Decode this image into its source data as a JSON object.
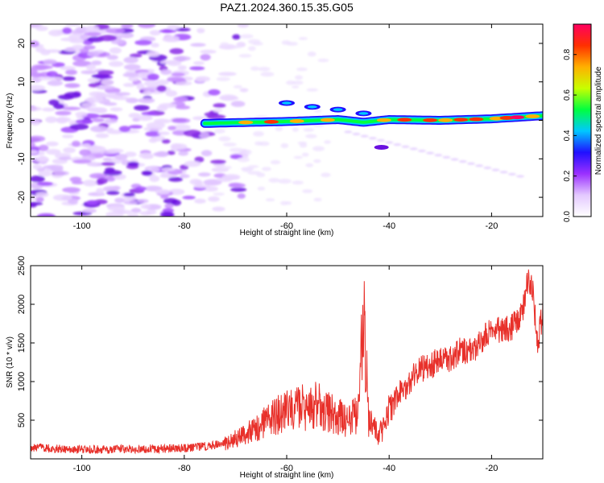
{
  "title": "PAZ1.2024.360.15.35.G05",
  "chart_data": [
    {
      "type": "heatmap",
      "xlabel": "Height of straight line (km)",
      "ylabel": "Frequency (Hz)",
      "xlim": [
        -110,
        -10
      ],
      "ylim": [
        -25,
        25
      ],
      "xticks": [
        -100,
        -80,
        -60,
        -40,
        -20
      ],
      "yticks": [
        -20,
        -10,
        0,
        10,
        20
      ],
      "grid": false,
      "colorbar": {
        "label": "Normalized spectral amplitude",
        "range": [
          0,
          0.95
        ],
        "ticks": [
          "0.0",
          "0.2",
          "0.4",
          "0.6",
          "0.8"
        ],
        "tick_values": [
          0.0,
          0.2,
          0.4,
          0.6,
          0.8
        ],
        "colors": [
          "#ffffff",
          "#e4c9ff",
          "#9b30ff",
          "#2010ff",
          "#00c8ff",
          "#00ff40",
          "#c8ff00",
          "#ffb000",
          "#ff3000",
          "#ff0060"
        ]
      },
      "ridge": {
        "start_height_km": -76,
        "points": [
          [
            -76,
            -0.8
          ],
          [
            -70,
            -0.6
          ],
          [
            -60,
            -0.3
          ],
          [
            -50,
            0.2
          ],
          [
            -45,
            -0.5
          ],
          [
            -40,
            0.2
          ],
          [
            -30,
            0.0
          ],
          [
            -20,
            0.4
          ],
          [
            -10,
            1.2
          ]
        ],
        "secondary": [
          [
            -60,
            4.5
          ],
          [
            -55,
            3.5
          ],
          [
            -50,
            2.8
          ],
          [
            -45,
            1.8
          ]
        ],
        "blip": [
          -41.5,
          -7
        ]
      },
      "noise_region_km": [
        -110,
        -72
      ]
    },
    {
      "type": "line",
      "xlabel": "Height of straight line (km)",
      "ylabel": "SNR (10 * v/v)",
      "xlim": [
        -110,
        -10
      ],
      "ylim": [
        0,
        2500
      ],
      "xticks": [
        -100,
        -80,
        -60,
        -40,
        -20
      ],
      "yticks": [
        500,
        1000,
        1500,
        2000,
        2500
      ],
      "grid": false,
      "series": [
        {
          "color": "#e8302a",
          "x": [
            -110,
            -105,
            -100,
            -95,
            -90,
            -85,
            -80,
            -75,
            -72,
            -70,
            -68,
            -66,
            -64,
            -62,
            -60,
            -58,
            -56,
            -54,
            -52,
            -50,
            -48,
            -46,
            -45,
            -44,
            -42,
            -40,
            -38,
            -36,
            -34,
            -32,
            -30,
            -28,
            -26,
            -24,
            -22,
            -20,
            -18,
            -16,
            -14,
            -13,
            -12,
            -11,
            -10
          ],
          "values": [
            150,
            130,
            120,
            120,
            130,
            130,
            140,
            170,
            200,
            260,
            320,
            400,
            480,
            560,
            650,
            700,
            650,
            700,
            600,
            550,
            500,
            600,
            1850,
            500,
            300,
            600,
            850,
            1000,
            1150,
            1200,
            1300,
            1300,
            1400,
            1400,
            1500,
            1700,
            1650,
            1700,
            1900,
            2300,
            2200,
            1500,
            1900
          ]
        }
      ]
    }
  ]
}
